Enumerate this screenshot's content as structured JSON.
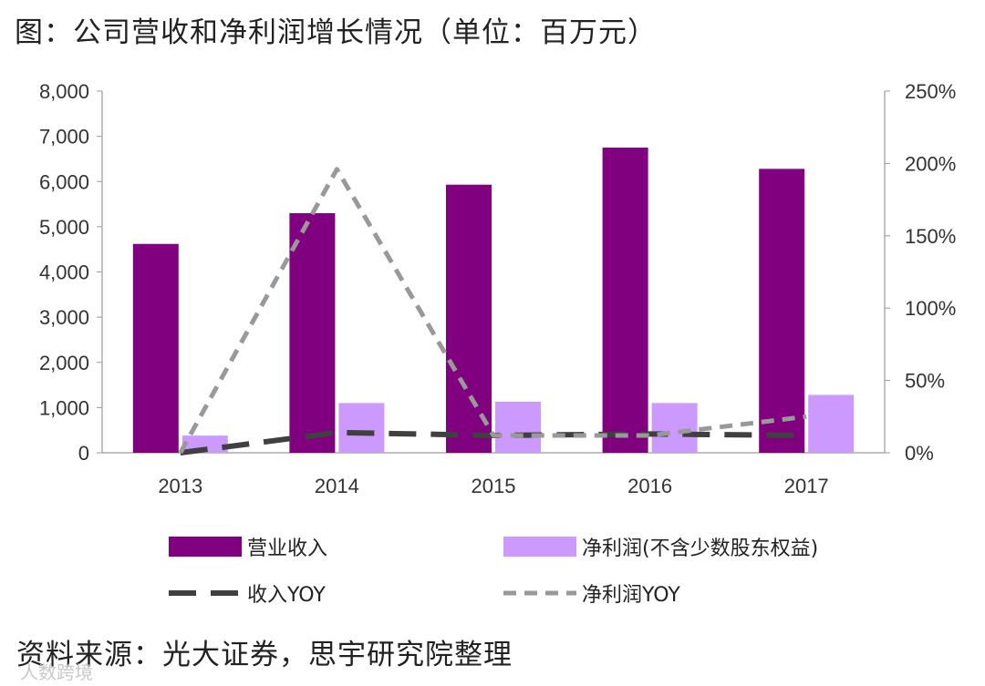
{
  "title": "图：公司营收和净利润增长情况（单位：百万元）",
  "source": "资料来源：光大证券，思宇研究院整理",
  "watermark": "人数跨境",
  "chart_data": {
    "type": "bar",
    "categories": [
      "2013",
      "2014",
      "2015",
      "2016",
      "2017"
    ],
    "series": [
      {
        "name": "营业收入",
        "kind": "bar",
        "axis": "left",
        "color": "#800080",
        "values": [
          4620,
          5300,
          5930,
          6750,
          6280
        ]
      },
      {
        "name": "净利润(不含少数股东权益)",
        "kind": "bar",
        "axis": "left",
        "color": "#cc99ff",
        "values": [
          380,
          1100,
          1130,
          1100,
          1280
        ]
      },
      {
        "name": "收入YOY",
        "kind": "line",
        "axis": "right",
        "color": "#404040",
        "dash": "long",
        "values": [
          0,
          14,
          12,
          13,
          12
        ]
      },
      {
        "name": "净利润YOY",
        "kind": "line",
        "axis": "right",
        "color": "#999999",
        "dash": "short",
        "values": [
          0,
          196,
          12,
          12,
          25
        ]
      }
    ],
    "ylim": [
      0,
      8000
    ],
    "yticks": [
      "0",
      "1,000",
      "2,000",
      "3,000",
      "4,000",
      "5,000",
      "6,000",
      "7,000",
      "8,000"
    ],
    "y2lim": [
      0,
      250
    ],
    "y2ticks": [
      "0%",
      "50%",
      "100%",
      "150%",
      "200%",
      "250%"
    ],
    "xlabel": "",
    "ylabel": "",
    "y2label": "",
    "grid": false,
    "legend": "bottom"
  }
}
